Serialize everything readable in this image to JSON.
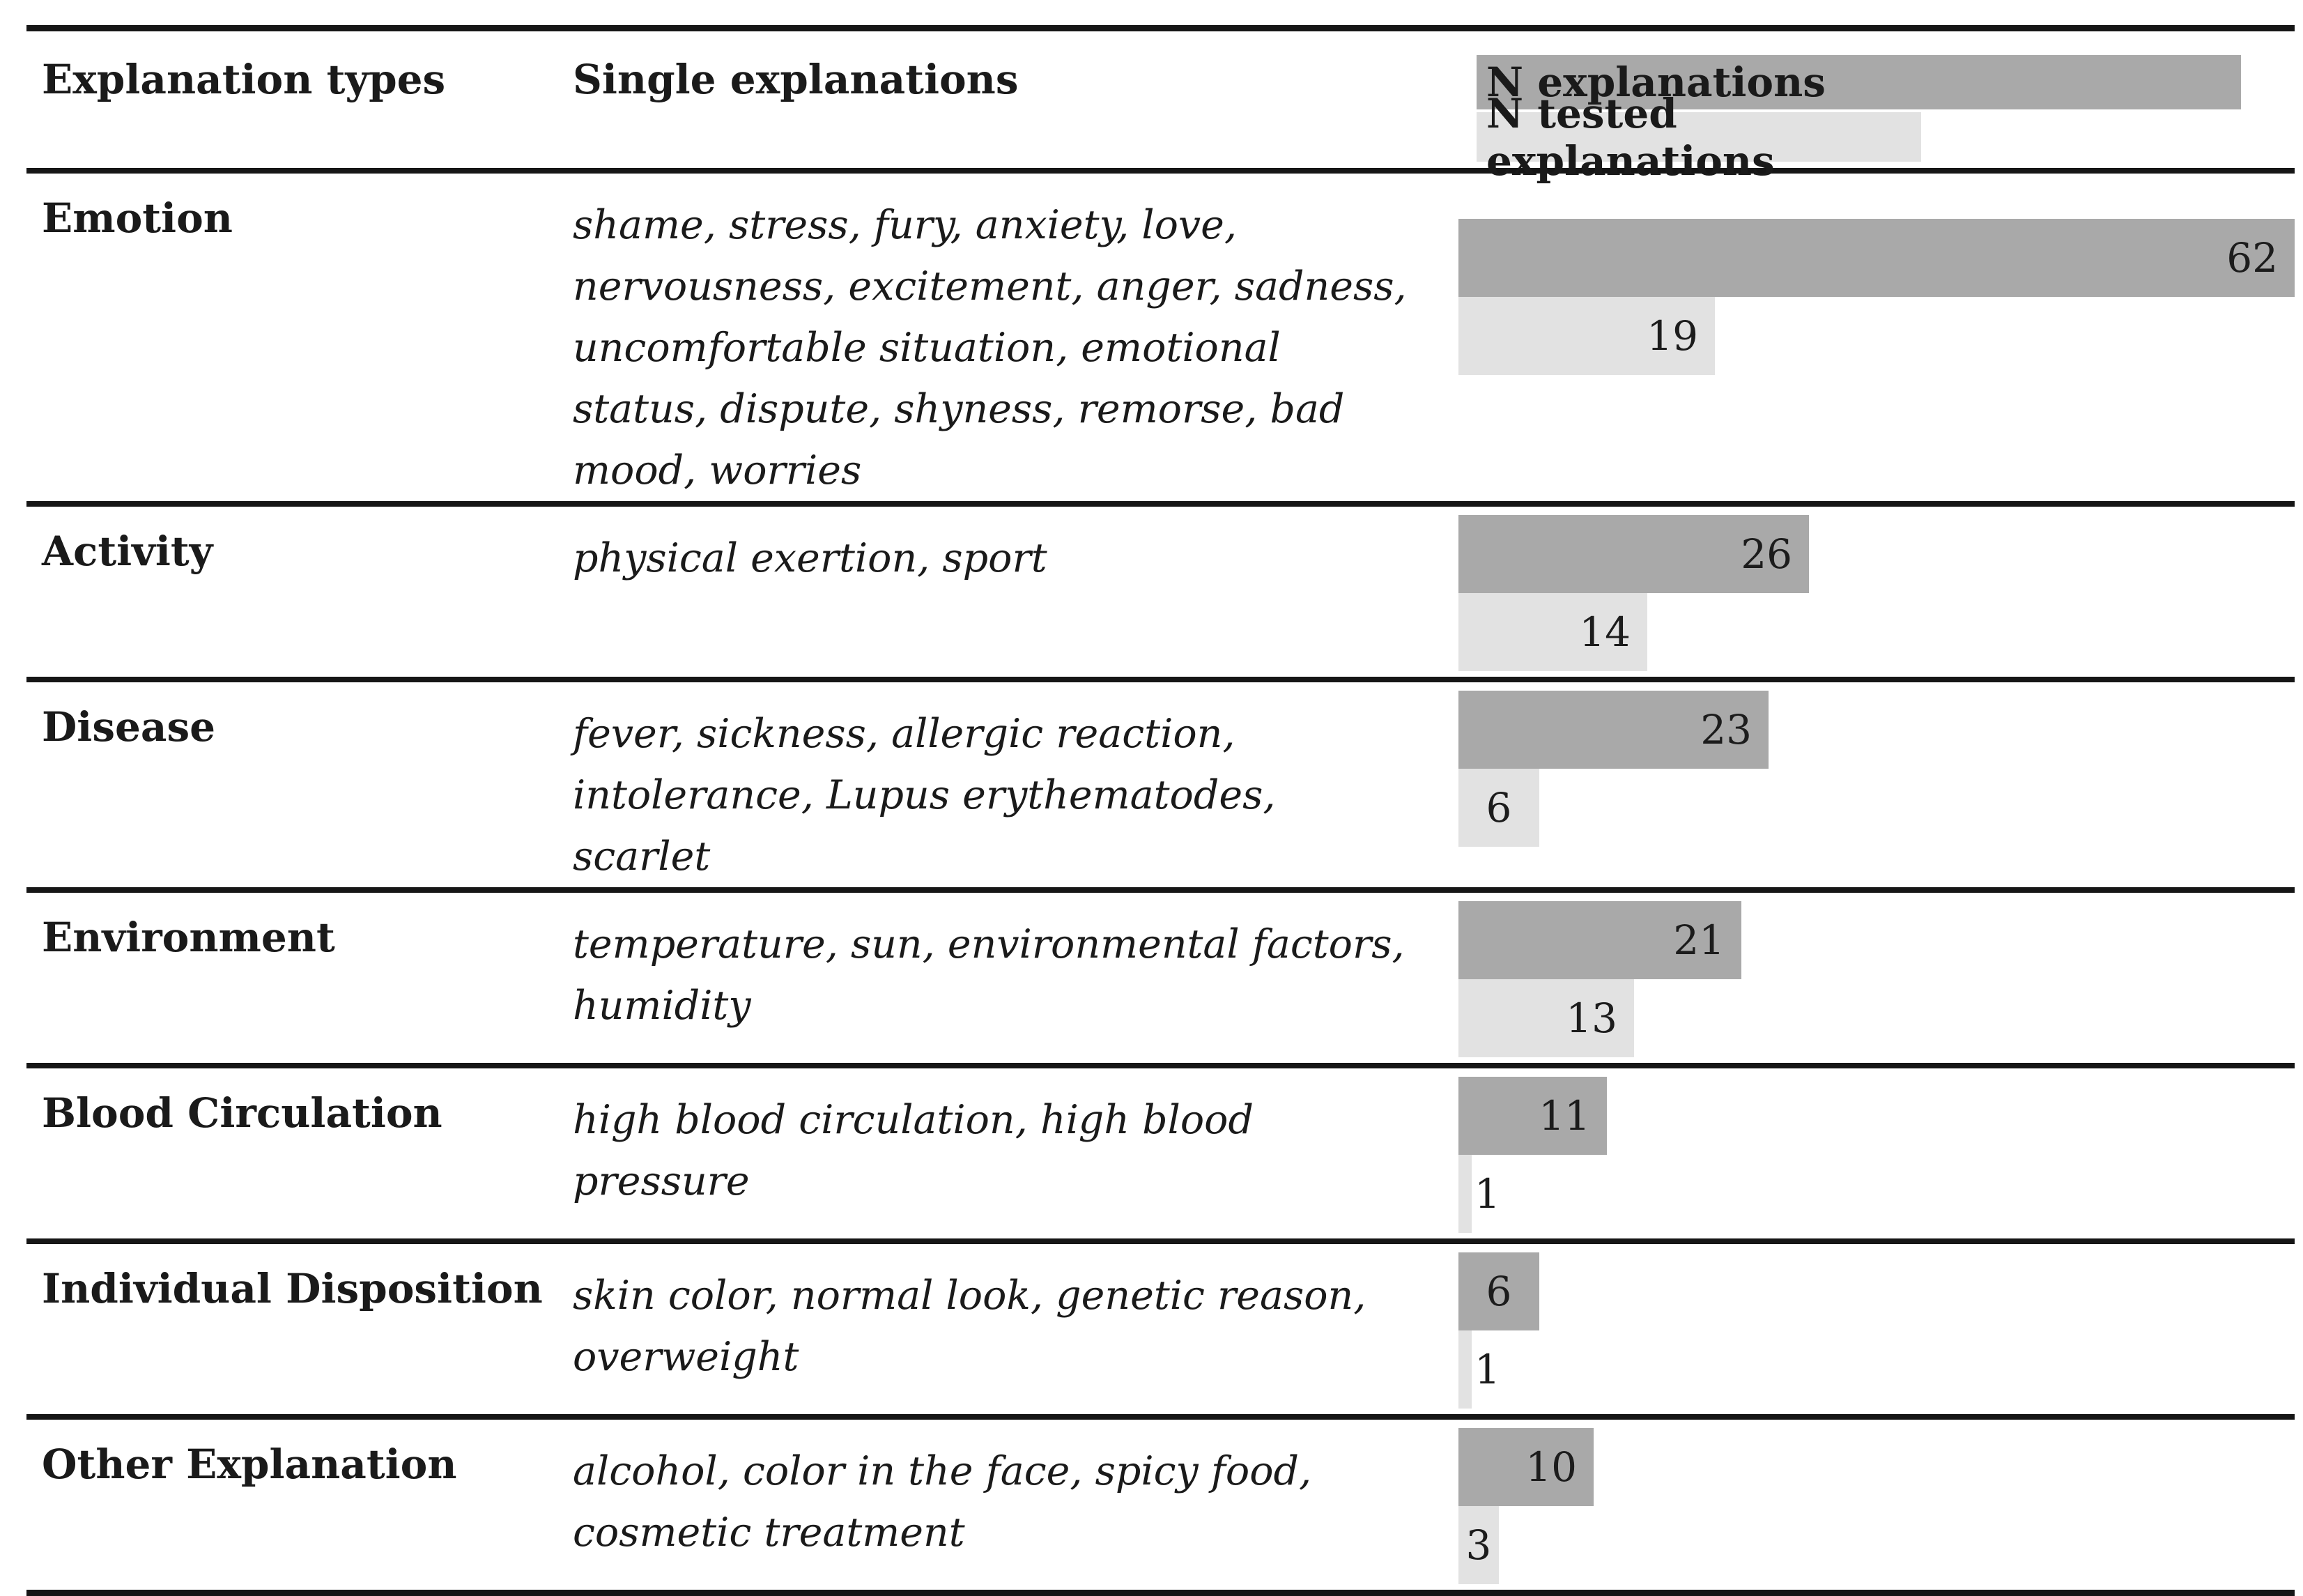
{
  "colors": {
    "bar_dark": "#a9a9a9",
    "bar_light": "#e2e2e2",
    "rule": "#161616"
  },
  "header": {
    "col1": "Explanation types",
    "col2": "Single explanations",
    "legend": [
      {
        "label": "N explanations",
        "color": "#a9a9a9"
      },
      {
        "label": "N tested explanations",
        "color": "#e2e2e2"
      }
    ]
  },
  "chart_data": {
    "type": "bar",
    "orientation": "horizontal",
    "categories": [
      "Emotion",
      "Activity",
      "Disease",
      "Environment",
      "Blood Circulation",
      "Individual Disposition",
      "Other Explanation"
    ],
    "series": [
      {
        "name": "N explanations",
        "color": "#a9a9a9",
        "values": [
          62,
          26,
          23,
          21,
          11,
          6,
          10
        ]
      },
      {
        "name": "N tested explanations",
        "color": "#e2e2e2",
        "values": [
          19,
          14,
          6,
          13,
          1,
          1,
          3
        ]
      }
    ],
    "xlim": [
      0,
      62
    ],
    "grid": false,
    "legend_position": "top-right-header-cell",
    "value_labels": "inside-end"
  },
  "rows": [
    {
      "type": "Emotion",
      "singles": "shame, stress, fury, anxiety, love, nervousness, excitement, anger, sadness, uncomfortable situation, emotional status, dispute, shyness, remorse, bad mood, worries",
      "n": 62,
      "n_tested": 19
    },
    {
      "type": "Activity",
      "singles": "physical exertion, sport",
      "n": 26,
      "n_tested": 14
    },
    {
      "type": "Disease",
      "singles": "fever, sickness, allergic reaction, intolerance, Lupus erythematodes, scarlet",
      "n": 23,
      "n_tested": 6
    },
    {
      "type": "Environment",
      "singles": "temperature, sun, environmental factors, humidity",
      "n": 21,
      "n_tested": 13
    },
    {
      "type": "Blood Circulation",
      "singles": "high blood circulation, high blood pressure",
      "n": 11,
      "n_tested": 1
    },
    {
      "type": "Individual Disposition",
      "singles": "skin color, normal look, genetic reason, overweight",
      "n": 6,
      "n_tested": 1
    },
    {
      "type": "Other Explanation",
      "singles": "alcohol, color in the face, spicy food, cosmetic treatment",
      "n": 10,
      "n_tested": 3
    }
  ]
}
